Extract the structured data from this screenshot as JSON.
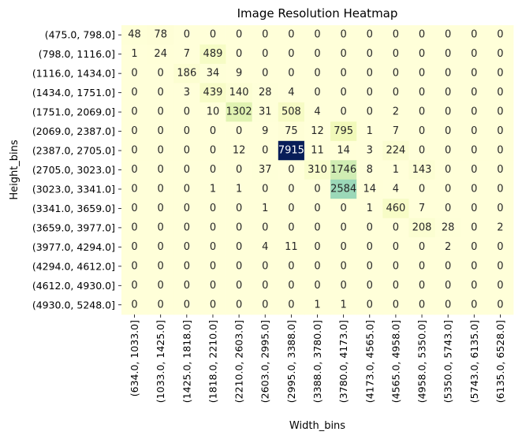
{
  "chart_data": {
    "type": "heatmap",
    "title": "Image Resolution Heatmap",
    "xlabel": "Width_bins",
    "ylabel": "Height_bins",
    "colormap": "YlGnBu",
    "colorbar": false,
    "x_categories": [
      "(634.0, 1033.0]",
      "(1033.0, 1425.0]",
      "(1425.0, 1818.0]",
      "(1818.0, 2210.0]",
      "(2210.0, 2603.0]",
      "(2603.0, 2995.0]",
      "(2995.0, 3388.0]",
      "(3388.0, 3780.0]",
      "(3780.0, 4173.0]",
      "(4173.0, 4565.0]",
      "(4565.0, 4958.0]",
      "(4958.0, 5350.0]",
      "(5350.0, 5743.0]",
      "(5743.0, 6135.0]",
      "(6135.0, 6528.0]"
    ],
    "y_categories": [
      "(475.0, 798.0]",
      "(798.0, 1116.0]",
      "(1116.0, 1434.0]",
      "(1434.0, 1751.0]",
      "(1751.0, 2069.0]",
      "(2069.0, 2387.0]",
      "(2387.0, 2705.0]",
      "(2705.0, 3023.0]",
      "(3023.0, 3341.0]",
      "(3341.0, 3659.0]",
      "(3659.0, 3977.0]",
      "(3977.0, 4294.0]",
      "(4294.0, 4612.0]",
      "(4612.0, 4930.0]",
      "(4930.0, 5248.0]"
    ],
    "values": [
      [
        48,
        78,
        0,
        0,
        0,
        0,
        0,
        0,
        0,
        0,
        0,
        0,
        0,
        0,
        0
      ],
      [
        1,
        24,
        7,
        489,
        0,
        0,
        0,
        0,
        0,
        0,
        0,
        0,
        0,
        0,
        0
      ],
      [
        0,
        0,
        186,
        34,
        9,
        0,
        0,
        0,
        0,
        0,
        0,
        0,
        0,
        0,
        0
      ],
      [
        0,
        0,
        3,
        439,
        140,
        28,
        4,
        0,
        0,
        0,
        0,
        0,
        0,
        0,
        0
      ],
      [
        0,
        0,
        0,
        10,
        1302,
        31,
        508,
        4,
        0,
        0,
        2,
        0,
        0,
        0,
        0
      ],
      [
        0,
        0,
        0,
        0,
        0,
        9,
        75,
        12,
        795,
        1,
        7,
        0,
        0,
        0,
        0
      ],
      [
        0,
        0,
        0,
        0,
        12,
        0,
        7915,
        11,
        14,
        3,
        224,
        0,
        0,
        0,
        0
      ],
      [
        0,
        0,
        0,
        0,
        0,
        37,
        0,
        310,
        1746,
        8,
        1,
        143,
        0,
        0,
        0
      ],
      [
        0,
        0,
        0,
        1,
        1,
        0,
        0,
        0,
        2584,
        14,
        4,
        0,
        0,
        0,
        0
      ],
      [
        0,
        0,
        0,
        0,
        0,
        1,
        0,
        0,
        0,
        1,
        460,
        7,
        0,
        0,
        0
      ],
      [
        0,
        0,
        0,
        0,
        0,
        0,
        0,
        0,
        0,
        0,
        0,
        208,
        28,
        0,
        2
      ],
      [
        0,
        0,
        0,
        0,
        0,
        4,
        11,
        0,
        0,
        0,
        0,
        0,
        2,
        0,
        0
      ],
      [
        0,
        0,
        0,
        0,
        0,
        0,
        0,
        0,
        0,
        0,
        0,
        0,
        0,
        0,
        0
      ],
      [
        0,
        0,
        0,
        0,
        0,
        0,
        0,
        0,
        0,
        0,
        0,
        0,
        0,
        0,
        0
      ],
      [
        0,
        0,
        0,
        0,
        0,
        0,
        0,
        1,
        1,
        0,
        0,
        0,
        0,
        0,
        0
      ]
    ],
    "vmin": 0,
    "vmax": 7915
  }
}
